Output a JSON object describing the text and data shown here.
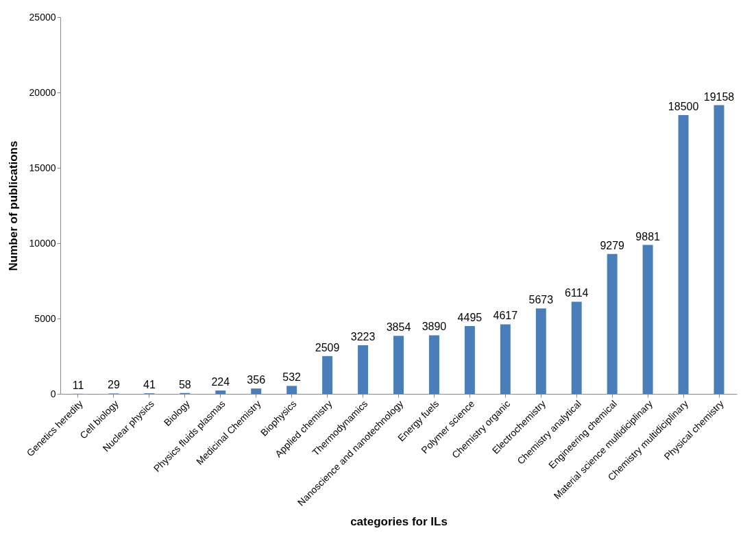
{
  "chart_data": {
    "type": "bar",
    "categories": [
      "Genetics heredity",
      "Cell biology",
      "Nuclear physics",
      "Biology",
      "Physics fluids plasmas",
      "Medicinal Chemistry",
      "Biophysics",
      "Applied chemistry",
      "Thermodynamics",
      "Nanoscience and nanotechnology",
      "Energy fuels",
      "Polymer science",
      "Chemistry organic",
      "Electrochemistry",
      "Chemistry analytical",
      "Engineering chemical",
      "Material science multidiciplinary",
      "Chemistry multidiciplinary",
      "Physical chemistry"
    ],
    "values": [
      11,
      29,
      41,
      58,
      224,
      356,
      532,
      2509,
      3223,
      3854,
      3890,
      4495,
      4617,
      5673,
      6114,
      9279,
      9881,
      18500,
      19158
    ],
    "color": "#4a7ebb",
    "xlabel": "categories for ILs",
    "ylabel": "Number of publications",
    "ylim": [
      0,
      25000
    ],
    "yticks": [
      0,
      5000,
      10000,
      15000,
      20000,
      25000
    ],
    "data_labels": true
  }
}
